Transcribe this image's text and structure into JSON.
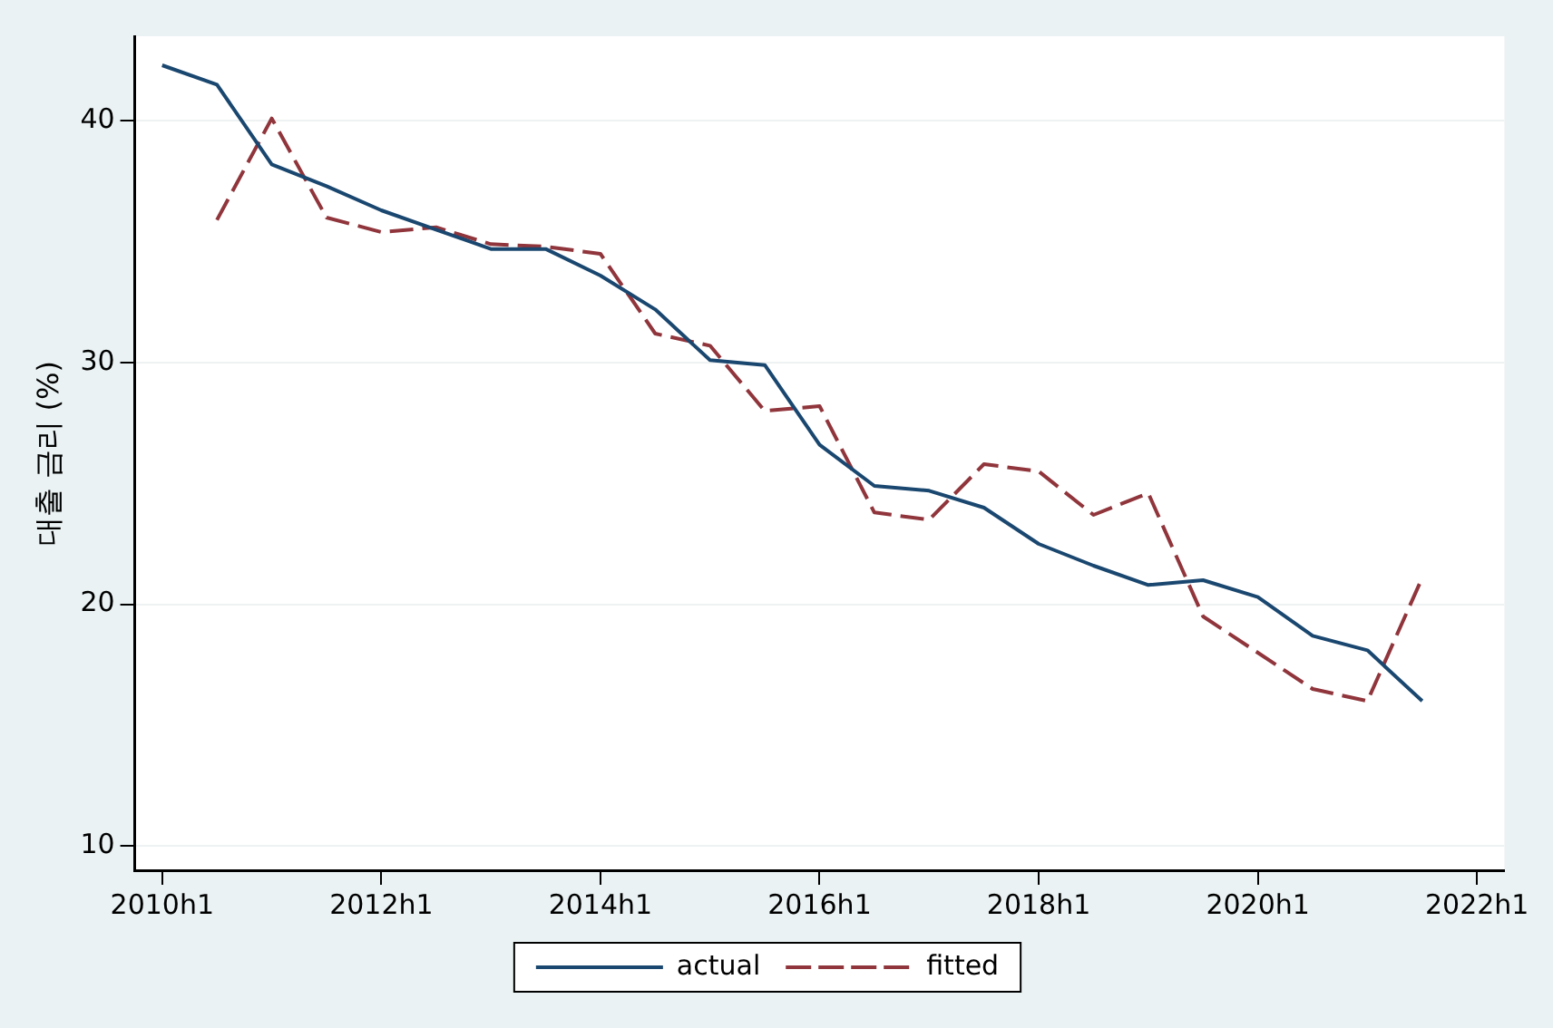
{
  "chart_data": {
    "type": "line",
    "ylabel": "대출 금리 (%)",
    "categories": [
      "2010h1",
      null,
      null,
      null,
      "2012h1",
      null,
      null,
      null,
      "2014h1",
      null,
      null,
      null,
      "2016h1",
      null,
      null,
      null,
      "2018h1",
      null,
      null,
      null,
      "2020h1",
      null,
      null,
      null,
      "2022h1"
    ],
    "ylim": [
      9,
      43.5
    ],
    "yticks": [
      10,
      20,
      30,
      40
    ],
    "grid": "y",
    "legend": "bottom",
    "marker": "none",
    "series": [
      {
        "name": "actual",
        "color": "#1a476f",
        "line_style": "solid",
        "values": [
          42.3,
          41.5,
          38.2,
          37.3,
          36.3,
          35.5,
          34.7,
          34.7,
          33.6,
          32.2,
          30.1,
          29.9,
          26.6,
          24.9,
          24.7,
          24.0,
          22.5,
          21.6,
          20.8,
          21.0,
          20.3,
          18.7,
          18.1,
          16.0,
          null
        ]
      },
      {
        "name": "fitted",
        "color": "#90353b",
        "line_style": "dashed",
        "values": [
          null,
          35.9,
          40.1,
          36.0,
          35.4,
          35.6,
          34.9,
          34.8,
          34.5,
          31.2,
          30.7,
          28.0,
          28.2,
          23.8,
          23.5,
          25.8,
          25.5,
          23.7,
          24.6,
          19.5,
          18.0,
          16.5,
          16.0,
          21.1,
          null
        ]
      }
    ]
  }
}
